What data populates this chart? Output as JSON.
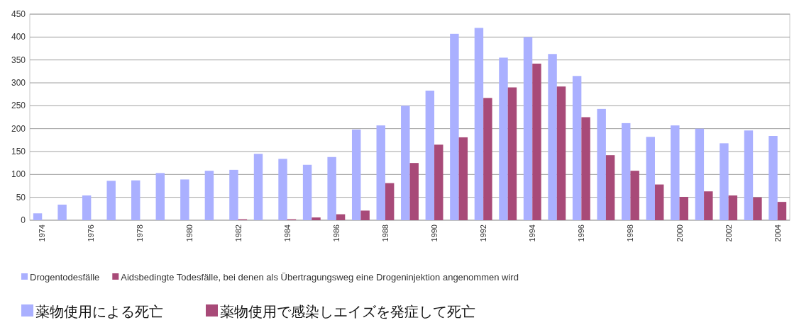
{
  "chart_data": {
    "type": "bar",
    "categories": [
      "1974",
      null,
      "1976",
      null,
      "1978",
      null,
      "1980",
      null,
      "1982",
      null,
      "1984",
      null,
      "1986",
      null,
      "1988",
      null,
      "1990",
      null,
      "1992",
      null,
      "1994",
      null,
      "1996",
      null,
      "1998",
      null,
      "2000",
      null,
      "2002",
      null,
      "2004"
    ],
    "series": [
      {
        "name": "Drogentodesfälle",
        "color": "#aab0ff",
        "values": [
          15,
          34,
          54,
          86,
          87,
          103,
          89,
          108,
          110,
          145,
          134,
          121,
          138,
          198,
          207,
          250,
          283,
          407,
          420,
          355,
          400,
          363,
          315,
          243,
          212,
          182,
          207,
          200,
          168,
          196,
          184
        ]
      },
      {
        "name": "Aidsbedingte Todesfälle, bei denen als Übertragungsweg eine Drogeninjektion angenommen wird",
        "color": "#a84a78",
        "values": [
          null,
          null,
          null,
          null,
          null,
          null,
          null,
          null,
          2,
          null,
          2,
          6,
          13,
          21,
          81,
          125,
          165,
          181,
          267,
          290,
          342,
          292,
          225,
          142,
          108,
          78,
          51,
          63,
          54,
          50,
          40
        ]
      }
    ],
    "ylim": [
      0,
      450
    ],
    "yticks": [
      0,
      50,
      100,
      150,
      200,
      250,
      300,
      350,
      400,
      450
    ],
    "grid": "y",
    "legend": "bottom",
    "annotations": [
      "薬物使用による死亡",
      "薬物使用で感染しエイズを発症して死亡"
    ]
  }
}
